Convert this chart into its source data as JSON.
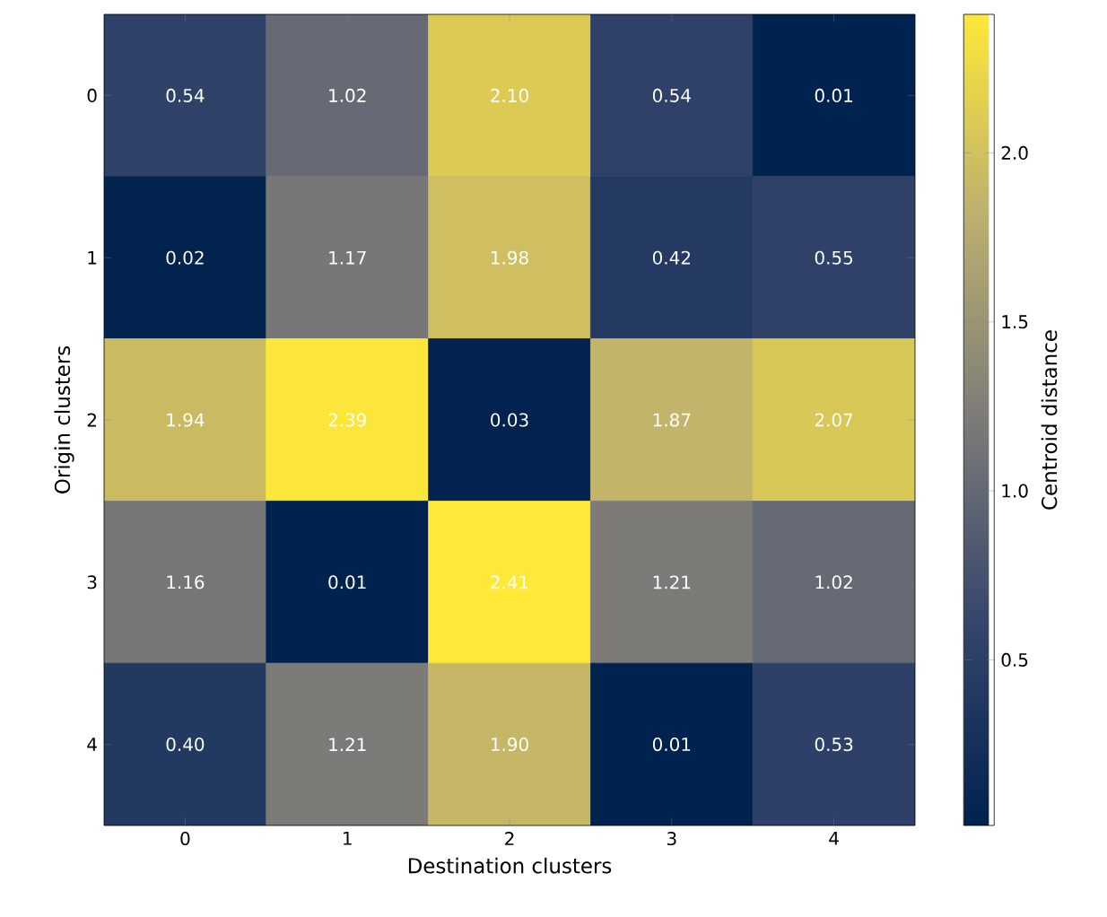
{
  "chart_data": {
    "type": "heatmap",
    "xlabel": "Destination clusters",
    "ylabel": "Origin clusters",
    "clabel": "Centroid distance",
    "categories": [
      "0",
      "1",
      "2",
      "3",
      "4"
    ],
    "y_categories": [
      "0",
      "1",
      "2",
      "3",
      "4"
    ],
    "cells": [
      [
        0.54,
        1.02,
        2.1,
        0.54,
        0.01
      ],
      [
        0.02,
        1.17,
        1.98,
        0.42,
        0.55
      ],
      [
        1.94,
        2.39,
        0.03,
        1.87,
        2.07
      ],
      [
        1.16,
        0.01,
        2.41,
        1.21,
        1.02
      ],
      [
        0.4,
        1.21,
        1.9,
        0.01,
        0.53
      ]
    ],
    "cell_labels": [
      [
        "0.54",
        "1.02",
        "2.10",
        "0.54",
        "0.01"
      ],
      [
        "0.02",
        "1.17",
        "1.98",
        "0.42",
        "0.55"
      ],
      [
        "1.94",
        "2.39",
        "0.03",
        "1.87",
        "2.07"
      ],
      [
        "1.16",
        "0.01",
        "2.41",
        "1.21",
        "1.02"
      ],
      [
        "0.40",
        "1.21",
        "1.90",
        "0.01",
        "0.53"
      ]
    ],
    "clim": [
      0.01,
      2.41
    ],
    "cticks": [
      {
        "value": 0.5,
        "label": "0.5"
      },
      {
        "value": 1.0,
        "label": "1.0"
      },
      {
        "value": 1.5,
        "label": "1.5"
      },
      {
        "value": 2.0,
        "label": "2.0"
      }
    ]
  }
}
